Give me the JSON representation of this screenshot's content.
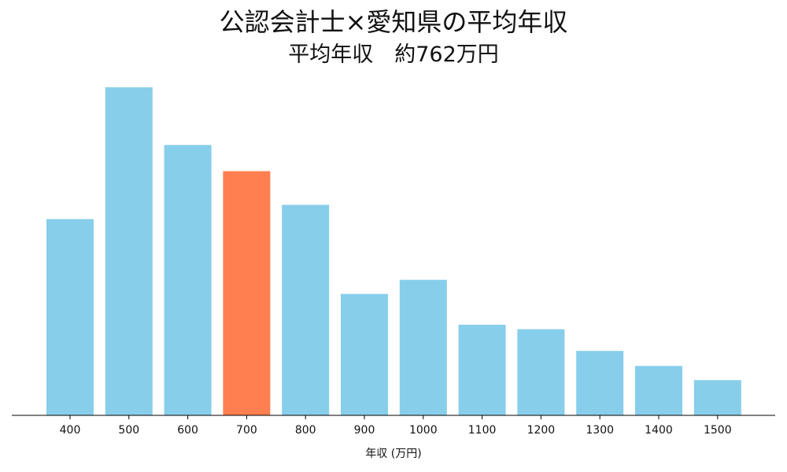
{
  "chart_data": {
    "type": "bar",
    "title": "公認会計士×愛知県の平均年収",
    "subtitle": "平均年収　約762万円",
    "xlabel": "年収 (万円)",
    "ylabel": "",
    "categories": [
      "400",
      "500",
      "600",
      "700",
      "800",
      "900",
      "1000",
      "1100",
      "1200",
      "1300",
      "1400",
      "1500"
    ],
    "values": [
      262,
      438,
      361,
      326,
      281,
      162,
      181,
      121,
      115,
      86,
      66,
      47
    ],
    "ylim": [
      0,
      460
    ],
    "highlight_index": 3,
    "bar_color": "#87CEEB",
    "highlight_color": "#FF7F50",
    "axis_color": "#000000",
    "grid": false,
    "legend": "none"
  }
}
